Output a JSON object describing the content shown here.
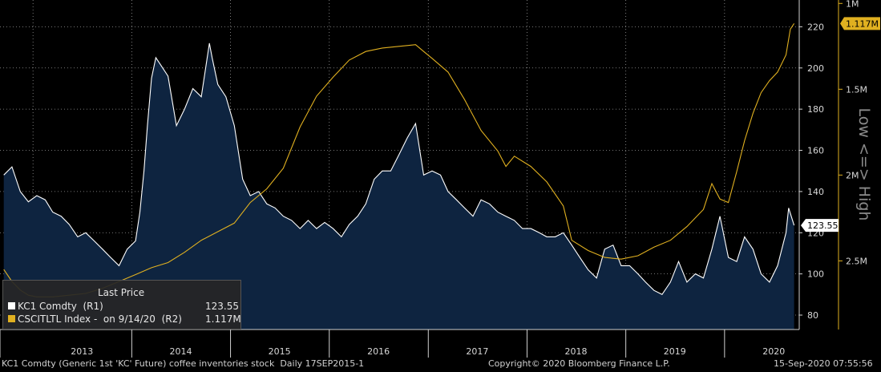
{
  "chart_data": {
    "type": "line",
    "x_years": [
      "2013",
      "2014",
      "2015",
      "2016",
      "2017",
      "2018",
      "2019",
      "2020"
    ],
    "right_axis": {
      "ticks": [
        80,
        100,
        120,
        140,
        160,
        180,
        200,
        220
      ],
      "range": [
        73,
        233
      ]
    },
    "far_right_axis": {
      "ticks": [
        "1M",
        "1.5M",
        "2M",
        "2.5M"
      ],
      "label": "Low <=> High",
      "inverted": true,
      "range_millions": [
        0.98,
        2.9
      ]
    },
    "series": [
      {
        "name": "KC1 Comdty (R1)",
        "color": "#ffffff",
        "fill": "#0e2440",
        "last_label": "123.55",
        "points": [
          [
            "2012-09-15",
            148
          ],
          [
            "2012-10-15",
            152
          ],
          [
            "2012-11-15",
            140
          ],
          [
            "2012-12-15",
            135
          ],
          [
            "2013-01-15",
            138
          ],
          [
            "2013-02-15",
            136
          ],
          [
            "2013-03-15",
            130
          ],
          [
            "2013-04-15",
            128
          ],
          [
            "2013-05-15",
            124
          ],
          [
            "2013-06-15",
            118
          ],
          [
            "2013-07-15",
            120
          ],
          [
            "2013-08-15",
            116
          ],
          [
            "2013-09-15",
            112
          ],
          [
            "2013-10-15",
            108
          ],
          [
            "2013-11-15",
            104
          ],
          [
            "2013-12-15",
            112
          ],
          [
            "2014-01-15",
            116
          ],
          [
            "2014-01-31",
            130
          ],
          [
            "2014-02-15",
            150
          ],
          [
            "2014-02-28",
            172
          ],
          [
            "2014-03-15",
            195
          ],
          [
            "2014-03-31",
            205
          ],
          [
            "2014-04-15",
            202
          ],
          [
            "2014-05-15",
            196
          ],
          [
            "2014-06-15",
            172
          ],
          [
            "2014-07-15",
            180
          ],
          [
            "2014-08-15",
            190
          ],
          [
            "2014-09-15",
            186
          ],
          [
            "2014-10-15",
            212
          ],
          [
            "2014-10-25",
            205
          ],
          [
            "2014-11-15",
            192
          ],
          [
            "2014-12-15",
            186
          ],
          [
            "2015-01-15",
            172
          ],
          [
            "2015-02-15",
            146
          ],
          [
            "2015-03-15",
            138
          ],
          [
            "2015-04-15",
            140
          ],
          [
            "2015-05-15",
            134
          ],
          [
            "2015-06-15",
            132
          ],
          [
            "2015-07-15",
            128
          ],
          [
            "2015-08-15",
            126
          ],
          [
            "2015-09-15",
            122
          ],
          [
            "2015-10-15",
            126
          ],
          [
            "2015-11-15",
            122
          ],
          [
            "2015-12-15",
            125
          ],
          [
            "2016-01-15",
            122
          ],
          [
            "2016-02-15",
            118
          ],
          [
            "2016-03-15",
            124
          ],
          [
            "2016-04-15",
            128
          ],
          [
            "2016-05-15",
            134
          ],
          [
            "2016-06-15",
            146
          ],
          [
            "2016-07-15",
            150
          ],
          [
            "2016-08-15",
            150
          ],
          [
            "2016-09-15",
            158
          ],
          [
            "2016-10-15",
            166
          ],
          [
            "2016-11-15",
            173
          ],
          [
            "2016-12-15",
            148
          ],
          [
            "2017-01-15",
            150
          ],
          [
            "2017-02-15",
            148
          ],
          [
            "2017-03-15",
            140
          ],
          [
            "2017-04-15",
            136
          ],
          [
            "2017-05-15",
            132
          ],
          [
            "2017-06-15",
            128
          ],
          [
            "2017-07-15",
            136
          ],
          [
            "2017-08-15",
            134
          ],
          [
            "2017-09-15",
            130
          ],
          [
            "2017-10-15",
            128
          ],
          [
            "2017-11-15",
            126
          ],
          [
            "2017-12-15",
            122
          ],
          [
            "2018-01-15",
            122
          ],
          [
            "2018-02-15",
            120
          ],
          [
            "2018-03-15",
            118
          ],
          [
            "2018-04-15",
            118
          ],
          [
            "2018-05-15",
            120
          ],
          [
            "2018-06-15",
            114
          ],
          [
            "2018-07-15",
            108
          ],
          [
            "2018-08-15",
            102
          ],
          [
            "2018-09-15",
            98
          ],
          [
            "2018-10-15",
            112
          ],
          [
            "2018-11-15",
            114
          ],
          [
            "2018-12-15",
            104
          ],
          [
            "2019-01-15",
            104
          ],
          [
            "2019-02-15",
            100
          ],
          [
            "2019-03-15",
            96
          ],
          [
            "2019-04-15",
            92
          ],
          [
            "2019-05-15",
            90
          ],
          [
            "2019-06-15",
            96
          ],
          [
            "2019-07-15",
            106
          ],
          [
            "2019-08-15",
            96
          ],
          [
            "2019-09-15",
            100
          ],
          [
            "2019-10-15",
            98
          ],
          [
            "2019-11-15",
            112
          ],
          [
            "2019-12-15",
            128
          ],
          [
            "2020-01-15",
            108
          ],
          [
            "2020-02-15",
            106
          ],
          [
            "2020-03-15",
            118
          ],
          [
            "2020-04-15",
            112
          ],
          [
            "2020-05-15",
            100
          ],
          [
            "2020-06-15",
            96
          ],
          [
            "2020-07-15",
            104
          ],
          [
            "2020-08-15",
            120
          ],
          [
            "2020-08-25",
            132
          ],
          [
            "2020-09-14",
            123.55
          ]
        ]
      },
      {
        "name": "CSCITLTL Index - on 9/14/20 (R2)",
        "color": "#e0b020",
        "last_label": "1.117M",
        "points_millions": [
          [
            "2012-09-15",
            2.55
          ],
          [
            "2012-10-15",
            2.62
          ],
          [
            "2012-11-15",
            2.67
          ],
          [
            "2012-12-15",
            2.7
          ],
          [
            "2013-01-15",
            2.71
          ],
          [
            "2013-03-15",
            2.71
          ],
          [
            "2013-05-15",
            2.7
          ],
          [
            "2013-07-15",
            2.69
          ],
          [
            "2013-09-15",
            2.66
          ],
          [
            "2013-11-15",
            2.62
          ],
          [
            "2014-01-15",
            2.58
          ],
          [
            "2014-03-15",
            2.54
          ],
          [
            "2014-05-15",
            2.51
          ],
          [
            "2014-07-15",
            2.45
          ],
          [
            "2014-09-15",
            2.38
          ],
          [
            "2014-11-15",
            2.33
          ],
          [
            "2015-01-15",
            2.28
          ],
          [
            "2015-03-15",
            2.16
          ],
          [
            "2015-05-15",
            2.08
          ],
          [
            "2015-07-15",
            1.96
          ],
          [
            "2015-09-15",
            1.72
          ],
          [
            "2015-11-15",
            1.54
          ],
          [
            "2016-01-15",
            1.43
          ],
          [
            "2016-03-15",
            1.33
          ],
          [
            "2016-05-15",
            1.28
          ],
          [
            "2016-07-15",
            1.26
          ],
          [
            "2016-09-15",
            1.25
          ],
          [
            "2016-11-15",
            1.24
          ],
          [
            "2016-12-15",
            1.28
          ],
          [
            "2017-01-15",
            1.32
          ],
          [
            "2017-03-15",
            1.4
          ],
          [
            "2017-05-15",
            1.56
          ],
          [
            "2017-07-15",
            1.74
          ],
          [
            "2017-09-15",
            1.86
          ],
          [
            "2017-10-15",
            1.95
          ],
          [
            "2017-11-15",
            1.89
          ],
          [
            "2018-01-15",
            1.95
          ],
          [
            "2018-03-15",
            2.04
          ],
          [
            "2018-05-15",
            2.18
          ],
          [
            "2018-06-15",
            2.38
          ],
          [
            "2018-08-15",
            2.44
          ],
          [
            "2018-10-15",
            2.48
          ],
          [
            "2018-12-15",
            2.49
          ],
          [
            "2019-02-15",
            2.47
          ],
          [
            "2019-04-15",
            2.42
          ],
          [
            "2019-06-15",
            2.38
          ],
          [
            "2019-08-15",
            2.3
          ],
          [
            "2019-10-15",
            2.2
          ],
          [
            "2019-11-15",
            2.05
          ],
          [
            "2019-12-15",
            2.14
          ],
          [
            "2020-01-15",
            2.16
          ],
          [
            "2020-02-15",
            1.98
          ],
          [
            "2020-03-15",
            1.8
          ],
          [
            "2020-04-15",
            1.64
          ],
          [
            "2020-05-15",
            1.52
          ],
          [
            "2020-06-15",
            1.45
          ],
          [
            "2020-07-15",
            1.4
          ],
          [
            "2020-08-15",
            1.3
          ],
          [
            "2020-08-31",
            1.15
          ],
          [
            "2020-09-14",
            1.117
          ]
        ]
      }
    ]
  },
  "legend": {
    "title": "Last Price",
    "rows": [
      {
        "name": "KC1 Comdty  (R1)",
        "value": "123.55",
        "color": "#ffffff"
      },
      {
        "name": "CSCITLTL Index -  on 9/14/20  (R2)",
        "value": "1.117M",
        "color": "#e0b020"
      }
    ]
  },
  "footer": {
    "left": "KC1 Comdty (Generic 1st 'KC' Future) coffee inventories stock  Daily 17SEP2015-1",
    "center": "Copyright© 2020 Bloomberg Finance L.P.",
    "right": "15-Sep-2020 07:55:56"
  }
}
